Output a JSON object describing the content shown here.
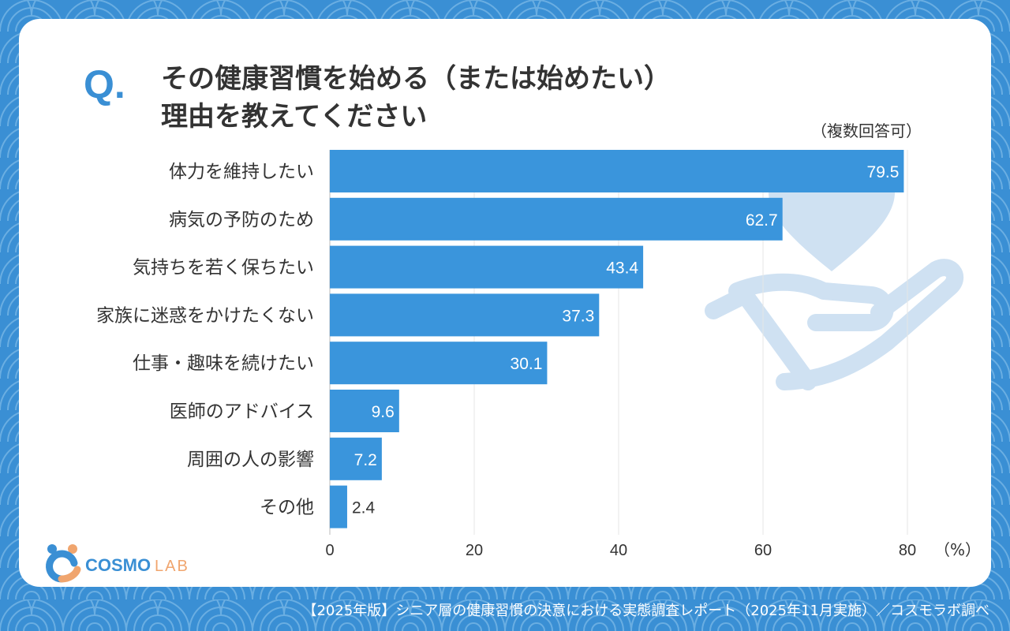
{
  "question_mark": "Q.",
  "title_lines": [
    "その健康習慣を始める（または始めたい）",
    "理由を教えてください"
  ],
  "note": "（複数回答可）",
  "logo": {
    "text_main": "COSMO",
    "text_sub": "LAB"
  },
  "footer": "【2025年版】シニア層の健康習慣の決意における実態調査レポート（2025年11月実施）／コスモラボ調べ",
  "colors": {
    "background": "#3a8fd4",
    "bar": "#3a95dc",
    "decoration": "#cfe1f2",
    "text": "#333333"
  },
  "chart_data": {
    "type": "bar",
    "orientation": "horizontal",
    "categories": [
      "体力を維持したい",
      "病気の予防のため",
      "気持ちを若く保ちたい",
      "家族に迷惑をかけたくない",
      "仕事・趣味を続けたい",
      "医師のアドバイス",
      "周囲の人の影響",
      "その他"
    ],
    "values": [
      79.5,
      62.7,
      43.4,
      37.3,
      30.1,
      9.6,
      7.2,
      2.4
    ],
    "xlim": [
      0,
      80
    ],
    "xticks": [
      0,
      20,
      40,
      60,
      80
    ],
    "unit_label": "（%）",
    "grid": true
  }
}
